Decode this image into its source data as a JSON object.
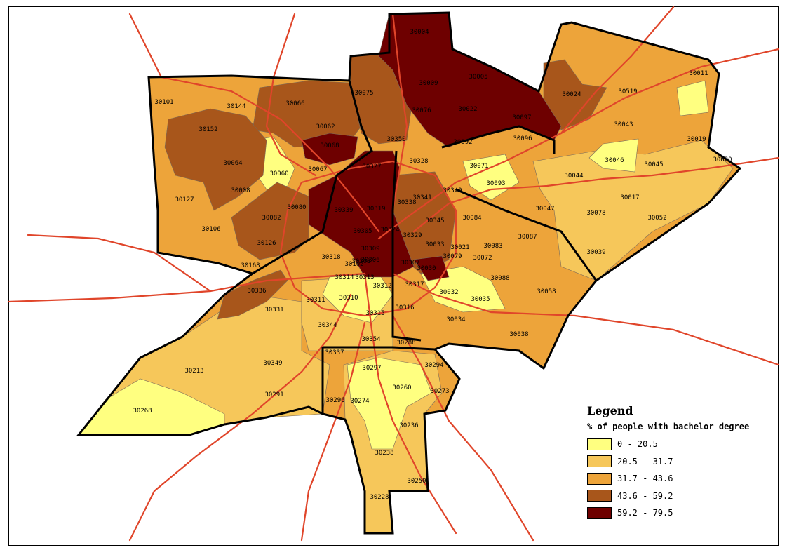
{
  "map": {
    "colors": {
      "class1": "#ffff80",
      "class2": "#f6c75a",
      "class3": "#eda43a",
      "class4": "#a8561b",
      "class5": "#6e0000",
      "roads": "#e0452a",
      "county_border": "#000000",
      "zip_border": "#7a6a5a"
    },
    "zip_labels": [
      "30004",
      "30005",
      "30009",
      "30022",
      "30097",
      "30024",
      "30519",
      "30011",
      "30043",
      "30019",
      "30620",
      "30045",
      "30046",
      "30017",
      "30052",
      "30044",
      "30078",
      "30047",
      "30039",
      "30087",
      "30058",
      "30088",
      "30083",
      "30035",
      "30038",
      "30034",
      "30032",
      "30079",
      "30072",
      "30021",
      "30030",
      "30033",
      "30345",
      "30084",
      "30093",
      "30071",
      "30340",
      "30341",
      "30096",
      "30092",
      "30350",
      "30076",
      "30075",
      "30062",
      "30066",
      "30144",
      "30101",
      "30152",
      "30064",
      "30068",
      "30067",
      "30060",
      "30008",
      "30127",
      "30106",
      "30126",
      "30082",
      "30080",
      "30168",
      "30339",
      "30327",
      "30328",
      "30338",
      "30319",
      "30305",
      "30324",
      "30329",
      "30309",
      "30306",
      "30307",
      "30317",
      "30318",
      "30314",
      "30313",
      "30303",
      "30312",
      "30310",
      "30311",
      "30331",
      "30336",
      "30344",
      "30315",
      "30316",
      "30354",
      "30288",
      "30337",
      "30297",
      "30294",
      "30296",
      "30274",
      "30260",
      "30273",
      "30236",
      "30213",
      "30268",
      "30349",
      "30291",
      "30238",
      "30250",
      "30228",
      "30102"
    ]
  },
  "legend": {
    "title": "Legend",
    "subtitle": "% of people with bachelor degree",
    "classes": [
      {
        "label": "0 - 20.5",
        "color": "#ffff80"
      },
      {
        "label": "20.5 - 31.7",
        "color": "#f6c75a"
      },
      {
        "label": "31.7 - 43.6",
        "color": "#eda43a"
      },
      {
        "label": "43.6 - 59.2",
        "color": "#a8561b"
      },
      {
        "label": "59.2 - 79.5",
        "color": "#6e0000"
      }
    ]
  }
}
